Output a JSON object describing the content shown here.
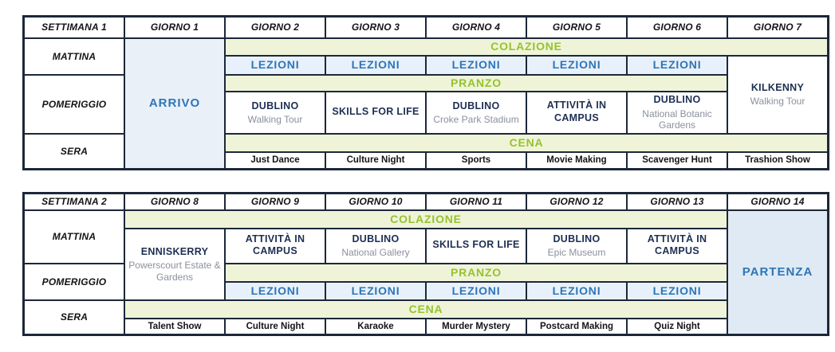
{
  "colors": {
    "border": "#1c2839",
    "green_text": "#96c22e",
    "green_bg": "#eff4d9",
    "blue_text": "#2e75b6",
    "blue_bg": "#e8f1fb",
    "arrival_bg": "#e9f0f8",
    "departure_bg": "#dfeaf5",
    "navy_text": "#1e2f52",
    "gray_text": "#8a909c",
    "black_text": "#141414"
  },
  "labels": {
    "morning": "MATTINA",
    "afternoon": "POMERIGGIO",
    "evening": "SERA",
    "breakfast": "COLAZIONE",
    "lunch": "PRANZO",
    "dinner": "CENA",
    "lessons": "LEZIONI"
  },
  "week1": {
    "title": "SETTIMANA 1",
    "days": [
      "GIORNO 1",
      "GIORNO 2",
      "GIORNO 3",
      "GIORNO 4",
      "GIORNO 5",
      "GIORNO 6",
      "GIORNO 7"
    ],
    "arrival": "ARRIVO",
    "afternoon_activities": [
      {
        "title": "DUBLINO",
        "subtitle": "Walking Tour"
      },
      {
        "title": "SKILLS FOR LIFE",
        "subtitle": ""
      },
      {
        "title": "DUBLINO",
        "subtitle": "Croke Park Stadium"
      },
      {
        "title": "ATTIVITÀ IN CAMPUS",
        "subtitle": ""
      },
      {
        "title": "DUBLINO",
        "subtitle": "National Botanic Gardens"
      }
    ],
    "day7_excursion": {
      "title": "KILKENNY",
      "subtitle": "Walking Tour"
    },
    "evening_activities": [
      "Just Dance",
      "Culture Night",
      "Sports",
      "Movie Making",
      "Scavenger Hunt",
      "Trashion Show"
    ]
  },
  "week2": {
    "title": "SETTIMANA 2",
    "days": [
      "GIORNO 8",
      "GIORNO 9",
      "GIORNO 10",
      "GIORNO 11",
      "GIORNO 12",
      "GIORNO 13",
      "GIORNO 14"
    ],
    "day8_excursion": {
      "title": "ENNISKERRY",
      "subtitle": "Powerscourt Estate & Gardens"
    },
    "morning_activities": [
      {
        "title": "ATTIVITÀ IN CAMPUS",
        "subtitle": ""
      },
      {
        "title": "DUBLINO",
        "subtitle": "National Gallery"
      },
      {
        "title": "SKILLS FOR LIFE",
        "subtitle": ""
      },
      {
        "title": "DUBLINO",
        "subtitle": "Epic Museum"
      },
      {
        "title": "ATTIVITÀ IN CAMPUS",
        "subtitle": ""
      }
    ],
    "departure": "PARTENZA",
    "evening_activities": [
      "Talent Show",
      "Culture Night",
      "Karaoke",
      "Murder Mystery",
      "Postcard Making",
      "Quiz Night"
    ]
  }
}
